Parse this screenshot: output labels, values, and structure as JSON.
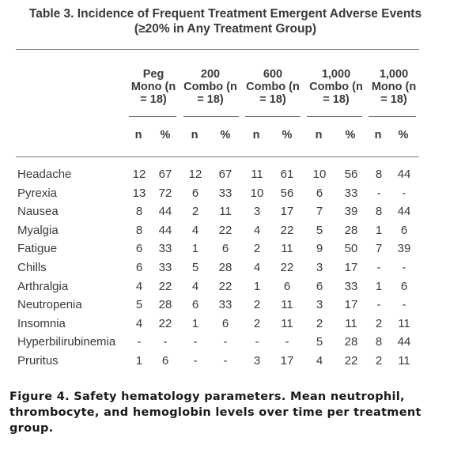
{
  "table": {
    "title_line1": "Table 3. Incidence of Frequent Treatment Emergent Adverse Events",
    "title_line2": "(≥20% in Any Treatment Group)",
    "groups": [
      {
        "line1": "Peg",
        "line2": "Mono (n",
        "line3": "= 18)"
      },
      {
        "line1": "200",
        "line2": "Combo (n",
        "line3": "= 18)"
      },
      {
        "line1": "600",
        "line2": "Combo (n",
        "line3": "= 18)"
      },
      {
        "line1": "1,000",
        "line2": "Combo (n",
        "line3": "= 18)"
      },
      {
        "line1": "1,000",
        "line2": "Mono (n",
        "line3": "= 18)"
      }
    ],
    "sub_n": "n",
    "sub_pct": "%",
    "rows": [
      {
        "label": "Headache",
        "values": [
          "12",
          "67",
          "12",
          "67",
          "11",
          "61",
          "10",
          "56",
          "8",
          "44"
        ]
      },
      {
        "label": "Pyrexia",
        "values": [
          "13",
          "72",
          "6",
          "33",
          "10",
          "56",
          "6",
          "33",
          "-",
          "-"
        ]
      },
      {
        "label": "Nausea",
        "values": [
          "8",
          "44",
          "2",
          "11",
          "3",
          "17",
          "7",
          "39",
          "8",
          "44"
        ]
      },
      {
        "label": "Myalgia",
        "values": [
          "8",
          "44",
          "4",
          "22",
          "4",
          "22",
          "5",
          "28",
          "1",
          "6"
        ]
      },
      {
        "label": "Fatigue",
        "values": [
          "6",
          "33",
          "1",
          "6",
          "2",
          "11",
          "9",
          "50",
          "7",
          "39"
        ]
      },
      {
        "label": "Chills",
        "values": [
          "6",
          "33",
          "5",
          "28",
          "4",
          "22",
          "3",
          "17",
          "-",
          "-"
        ]
      },
      {
        "label": "Arthralgia",
        "values": [
          "4",
          "22",
          "4",
          "22",
          "1",
          "6",
          "6",
          "33",
          "1",
          "6"
        ]
      },
      {
        "label": "Neutropenia",
        "values": [
          "5",
          "28",
          "6",
          "33",
          "2",
          "11",
          "3",
          "17",
          "-",
          "-"
        ]
      },
      {
        "label": "Insomnia",
        "values": [
          "4",
          "22",
          "1",
          "6",
          "2",
          "11",
          "2",
          "11",
          "2",
          "11"
        ]
      },
      {
        "label": "Hyperbilirubinemia",
        "values": [
          "-",
          "-",
          "-",
          "-",
          "-",
          "-",
          "5",
          "28",
          "8",
          "44"
        ]
      },
      {
        "label": "Pruritus",
        "values": [
          "1",
          "6",
          "-",
          "-",
          "3",
          "17",
          "4",
          "22",
          "2",
          "11"
        ]
      }
    ]
  },
  "caption": {
    "line1": "Figure 4. Safety hematology parameters. Mean neutrophil,",
    "line2": "thrombocyte, and hemoglobin levels over time per treatment",
    "line3": "group."
  }
}
